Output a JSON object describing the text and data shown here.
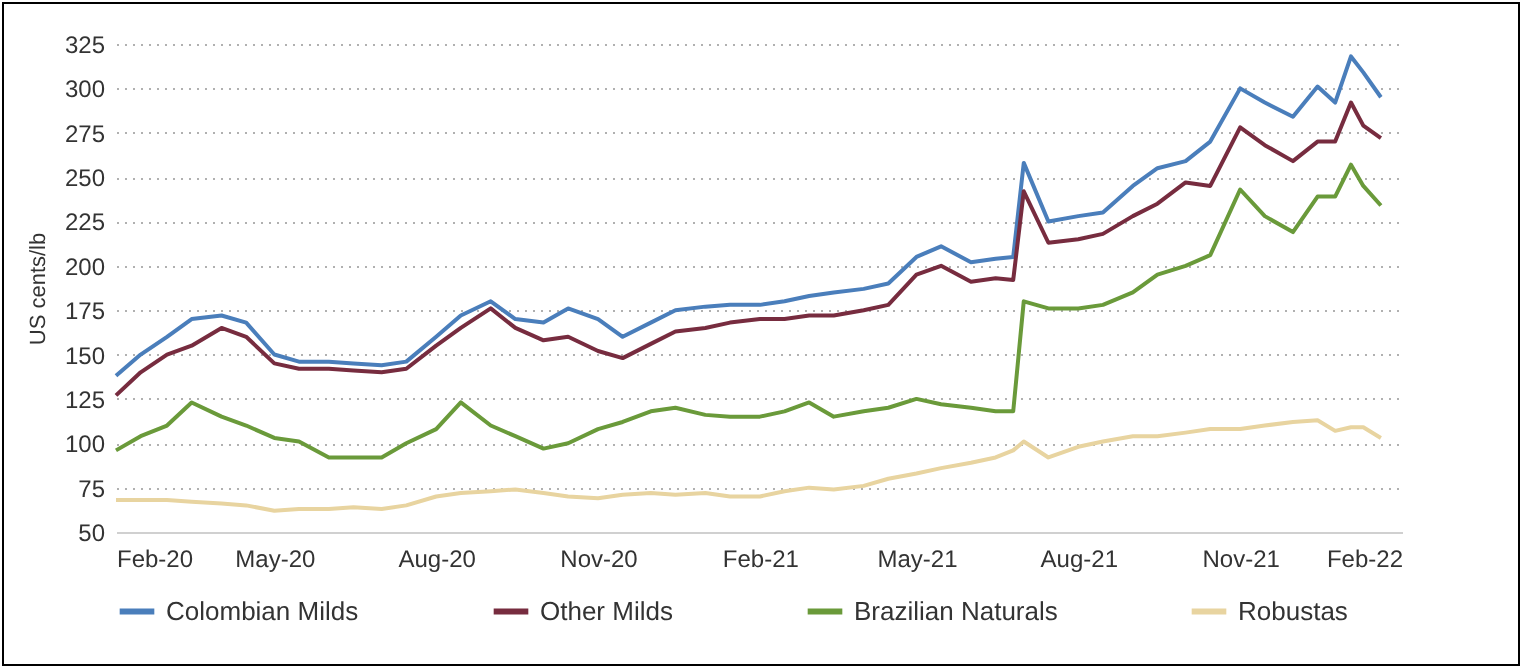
{
  "chart_data": {
    "type": "line",
    "ylabel": "US cents/lb",
    "x": [
      "2020-02-01",
      "2020-02-15",
      "2020-03-01",
      "2020-03-15",
      "2020-04-01",
      "2020-04-15",
      "2020-05-01",
      "2020-05-15",
      "2020-06-01",
      "2020-06-15",
      "2020-07-01",
      "2020-07-15",
      "2020-08-01",
      "2020-08-15",
      "2020-09-01",
      "2020-09-15",
      "2020-10-01",
      "2020-10-15",
      "2020-11-01",
      "2020-11-15",
      "2020-12-01",
      "2020-12-15",
      "2021-01-01",
      "2021-01-15",
      "2021-02-01",
      "2021-02-15",
      "2021-03-01",
      "2021-03-15",
      "2021-04-01",
      "2021-04-15",
      "2021-05-01",
      "2021-05-15",
      "2021-06-01",
      "2021-06-15",
      "2021-06-25",
      "2021-07-01",
      "2021-07-15",
      "2021-08-01",
      "2021-08-15",
      "2021-09-01",
      "2021-09-15",
      "2021-10-01",
      "2021-10-15",
      "2021-11-01",
      "2021-11-15",
      "2021-12-01",
      "2021-12-15",
      "2021-12-25",
      "2022-01-03",
      "2022-01-10",
      "2022-01-20"
    ],
    "series": [
      {
        "name": "Colombian Milds",
        "color": "#4a7ebb",
        "values": [
          138,
          150,
          160,
          170,
          172,
          168,
          150,
          146,
          146,
          145,
          144,
          146,
          160,
          172,
          180,
          170,
          168,
          176,
          170,
          160,
          168,
          175,
          177,
          178,
          178,
          180,
          183,
          185,
          187,
          190,
          205,
          211,
          202,
          204,
          205,
          258,
          225,
          228,
          230,
          245,
          255,
          259,
          270,
          300,
          292,
          284,
          301,
          292,
          318,
          309,
          295
        ]
      },
      {
        "name": "Other Milds",
        "color": "#772c3f",
        "values": [
          127,
          140,
          150,
          155,
          165,
          160,
          145,
          142,
          142,
          141,
          140,
          142,
          155,
          165,
          176,
          165,
          158,
          160,
          152,
          148,
          156,
          163,
          165,
          168,
          170,
          170,
          172,
          172,
          175,
          178,
          195,
          200,
          191,
          193,
          192,
          242,
          213,
          215,
          218,
          228,
          235,
          247,
          245,
          278,
          268,
          259,
          270,
          270,
          292,
          279,
          272
        ]
      },
      {
        "name": "Brazilian Naturals",
        "color": "#6a9a3a",
        "values": [
          96,
          104,
          110,
          123,
          115,
          110,
          103,
          101,
          92,
          92,
          92,
          100,
          108,
          123,
          110,
          104,
          97,
          100,
          108,
          112,
          118,
          120,
          116,
          115,
          115,
          118,
          123,
          115,
          118,
          120,
          125,
          122,
          120,
          118,
          118,
          180,
          176,
          176,
          178,
          185,
          195,
          200,
          206,
          243,
          228,
          219,
          239,
          239,
          257,
          245,
          234
        ]
      },
      {
        "name": "Robustas",
        "color": "#e8d4a0",
        "values": [
          68,
          68,
          68,
          67,
          66,
          65,
          62,
          63,
          63,
          64,
          63,
          65,
          70,
          72,
          73,
          74,
          72,
          70,
          69,
          71,
          72,
          71,
          72,
          70,
          70,
          73,
          75,
          74,
          76,
          80,
          83,
          86,
          89,
          92,
          96,
          101,
          92,
          98,
          101,
          104,
          104,
          106,
          108,
          108,
          110,
          112,
          113,
          107,
          109,
          109,
          103
        ]
      }
    ],
    "xlim": [
      "2020-02-01",
      "2022-02-01"
    ],
    "xticks": [
      {
        "value": "2020-02-01",
        "label": "Feb-20"
      },
      {
        "value": "2020-05-01",
        "label": "May-20"
      },
      {
        "value": "2020-08-01",
        "label": "Aug-20"
      },
      {
        "value": "2020-11-01",
        "label": "Nov-20"
      },
      {
        "value": "2021-02-01",
        "label": "Feb-21"
      },
      {
        "value": "2021-05-01",
        "label": "May-21"
      },
      {
        "value": "2021-08-01",
        "label": "Aug-21"
      },
      {
        "value": "2021-11-01",
        "label": "Nov-21"
      },
      {
        "value": "2022-02-01",
        "label": "Feb-22"
      }
    ],
    "ylim": [
      50,
      325
    ],
    "yticks": [
      50,
      75,
      100,
      125,
      150,
      175,
      200,
      225,
      250,
      275,
      300,
      325
    ],
    "grid": "y",
    "legend": "bottom",
    "marker": "none",
    "line_style": "solid"
  }
}
